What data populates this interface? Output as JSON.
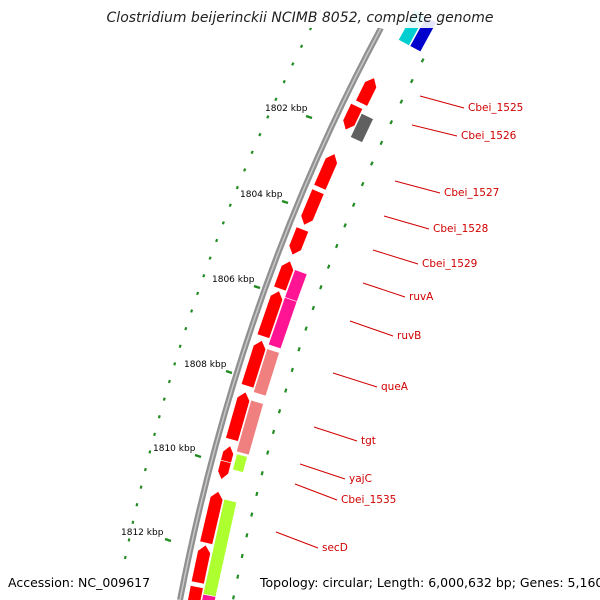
{
  "title": "Clostridium beijerinckii NCIMB 8052, complete genome",
  "footer": {
    "accession": "Accession: NC_009617",
    "topology": "Topology: circular; Length: 6,000,632 bp; Genes: 5,160"
  },
  "colors": {
    "backbone": "#909090",
    "gene_label": "#d00000",
    "leader_line": "#d00000",
    "tick": "#228B22",
    "gene_red": "#ff0000",
    "gene_magenta": "#ff1493",
    "gene_salmon": "#f08080",
    "gene_lime": "#adff2f",
    "gene_gray": "#606060",
    "gene_blue": "#0000cd",
    "gene_cyan": "#00ced1"
  },
  "kbp_labels": [
    "1802 kbp",
    "1804 kbp",
    "1806 kbp",
    "1808 kbp",
    "1810 kbp",
    "1812 kbp"
  ],
  "gene_labels": [
    "Cbei_1525",
    "Cbei_1526",
    "Cbei_1527",
    "Cbei_1528",
    "Cbei_1529",
    "ruvA",
    "ruvB",
    "queA",
    "tgt",
    "yajC",
    "Cbei_1535",
    "secD"
  ]
}
